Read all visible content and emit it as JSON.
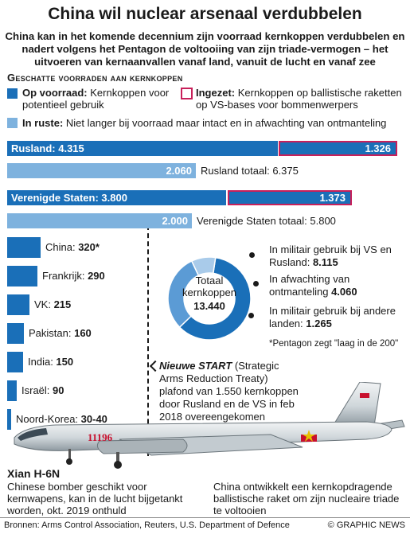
{
  "title": "China wil nuclear arsenaal verdubbelen",
  "subtitle": "China kan in het komende decennium zijn voorraad kernkoppen verdubbelen en nadert volgens het Pentagon de voltooiing van zijn triade-vermogen – het uitvoeren van kernaanvallen vanaf land, vanuit de lucht en vanaf zee",
  "section_heading": "Geschatte voorraden aan kernkoppen",
  "legend": {
    "op_voorraad_bold": "Op voorraad:",
    "op_voorraad_text": " Kernkoppen voor potentieel gebruik",
    "ingezet_bold": "Ingezet:",
    "ingezet_text": " Kernkoppen op ballistische raketten op VS-bases voor bommenwerpers",
    "in_ruste_bold": "In ruste:",
    "in_ruste_text": " Niet langer bij voorraad maar intact en in afwachting van ontmanteling"
  },
  "colors": {
    "stockpile": "#1a6fb8",
    "deployed_border": "#c8205a",
    "retired": "#7eb2de",
    "donut_dark": "#1a6fb8",
    "donut_mid": "#5b9bd5",
    "donut_light": "#a9cbea"
  },
  "chart_data": {
    "type": "bar",
    "title": "Geschatte voorraden aan kernkoppen",
    "major": [
      {
        "country": "Rusland",
        "stockpile": 4315,
        "deployed": 1326,
        "retired": 2060,
        "total": 6375,
        "stockpile_label": "Rusland: 4.315",
        "deployed_label": "1.326",
        "retired_label": "2.060",
        "total_label": "Rusland totaal: 6.375"
      },
      {
        "country": "Verenigde Staten",
        "stockpile": 3800,
        "deployed": 1373,
        "retired": 2000,
        "total": 5800,
        "stockpile_label": "Verenigde Staten: 3.800",
        "deployed_label": "1.373",
        "retired_label": "2.000",
        "total_label": "Verenigde Staten totaal: 5.800"
      }
    ],
    "minor": [
      {
        "country": "China",
        "value": 320,
        "label_name": "China:",
        "label_value": "320*"
      },
      {
        "country": "Frankrijk",
        "value": 290,
        "label_name": "Frankrijk:",
        "label_value": "290"
      },
      {
        "country": "VK",
        "value": 215,
        "label_name": "VK:",
        "label_value": "215"
      },
      {
        "country": "Pakistan",
        "value": 160,
        "label_name": "Pakistan:",
        "label_value": "160"
      },
      {
        "country": "India",
        "value": 150,
        "label_name": "India:",
        "label_value": "150"
      },
      {
        "country": "Israël",
        "value": 90,
        "label_name": "Israël:",
        "label_value": "90"
      },
      {
        "country": "Noord-Korea",
        "value": 35,
        "label_name": "Noord-Korea:",
        "label_value": "30-40"
      }
    ],
    "donut": {
      "center_label": "Totaal kernkoppen",
      "center_value": "13.440",
      "segments": [
        {
          "label": "In militair gebruik bij VS en Rusland:",
          "value": 8115,
          "value_label": "8.115"
        },
        {
          "label": "In afwachting van ontmanteling",
          "value": 4060,
          "value_label": "4.060"
        },
        {
          "label": "In militair gebruik bij andere landen:",
          "value": 1265,
          "value_label": "1.265"
        }
      ]
    }
  },
  "footnote": "*Pentagon zegt \"laag in de 200\"",
  "start_treaty": {
    "name": "Nieuwe START",
    "text": " (Strategic Arms Reduction Treaty) plafond van 1.550 kernkoppen door Rusland en de VS in feb 2018 overeengekomen"
  },
  "aircraft": {
    "name": "Xian H-6N",
    "tail_number": "11196",
    "caption": "Chinese bomber geschikt voor kernwapens, kan in de lucht bijgetankt worden, okt. 2019 onthuld"
  },
  "missile_caption": "China ontwikkelt een kernkopdragende ballistische raket om zijn nucleaire triade te voltooien",
  "sources": "Bronnen: Arms Control Association, Reuters, U.S. Department of Defence",
  "credit": "© GRAPHIC NEWS"
}
